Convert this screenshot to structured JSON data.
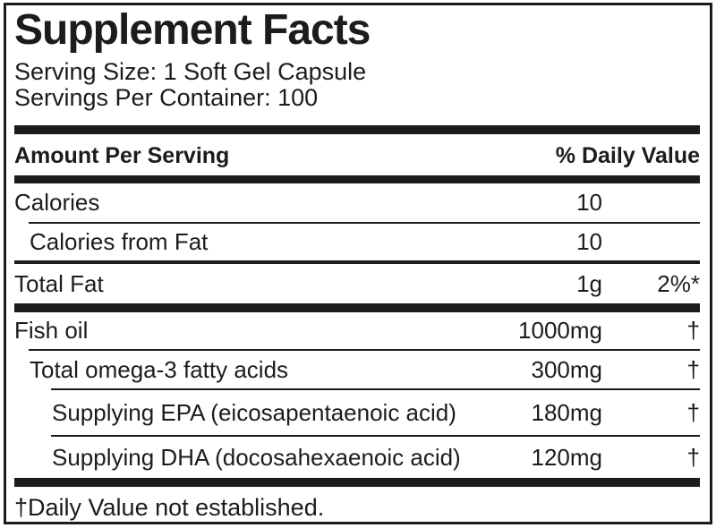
{
  "colors": {
    "ink": "#1c1c1e",
    "paper": "#ffffff"
  },
  "label": {
    "title": "Supplement Facts",
    "serving_size": "Serving Size: 1 Soft Gel Capsule",
    "servings_per_container": "Servings Per Container: 100",
    "columns": {
      "amount_header": "Amount Per Serving",
      "daily_value_header": "% Daily Value"
    },
    "rows": [
      {
        "name": "Calories",
        "amount": "10",
        "daily_value": ""
      },
      {
        "name": "Calories from Fat",
        "amount": "10",
        "daily_value": ""
      },
      {
        "name": "Total Fat",
        "amount": "1g",
        "daily_value": "2%*"
      },
      {
        "name": "Fish oil",
        "amount": "1000mg",
        "daily_value": "†"
      },
      {
        "name": "Total omega-3 fatty acids",
        "amount": "300mg",
        "daily_value": "†"
      },
      {
        "name": "Supplying EPA (eicosapentaenoic acid)",
        "amount": "180mg",
        "daily_value": "†"
      },
      {
        "name": "Supplying DHA (docosahexaenoic acid)",
        "amount": "120mg",
        "daily_value": "†"
      }
    ],
    "footnote": "†Daily Value not established."
  }
}
